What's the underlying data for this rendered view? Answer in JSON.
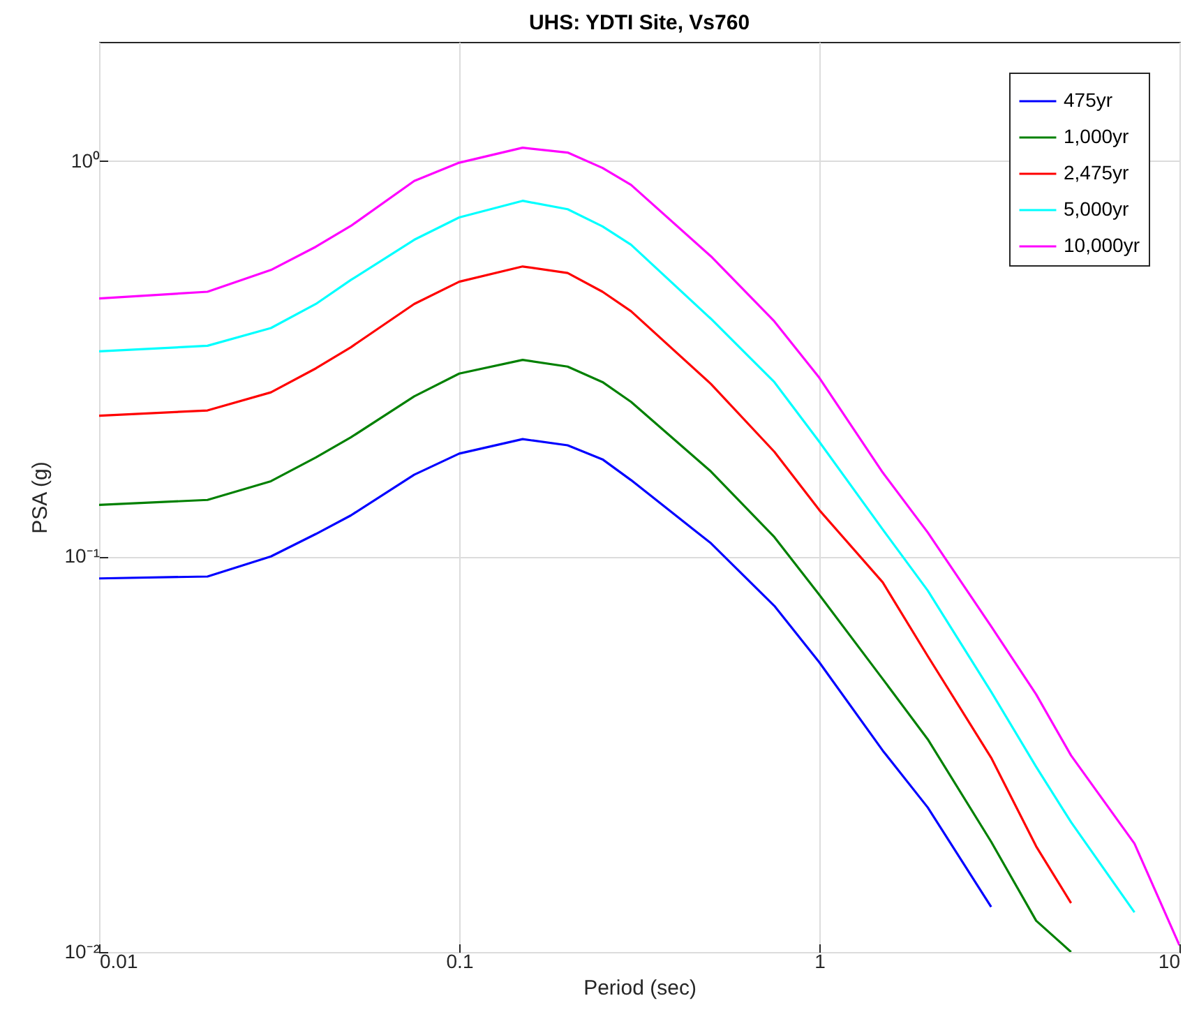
{
  "chart_data": {
    "type": "line",
    "title": "UHS: YDTI Site, Vs760",
    "xlabel": "Period (sec)",
    "ylabel": "PSA (g)",
    "x": [
      0.01,
      0.02,
      0.03,
      0.04,
      0.05,
      0.075,
      0.1,
      0.15,
      0.2,
      0.25,
      0.3,
      0.5,
      0.75,
      1,
      1.5,
      2,
      3,
      4,
      5,
      7.5,
      10
    ],
    "series": [
      {
        "name": "475yr",
        "color": "#0000ff",
        "values": [
          0.088,
          0.089,
          0.1,
          0.114,
          0.127,
          0.161,
          0.182,
          0.198,
          0.191,
          0.176,
          0.156,
          0.108,
          0.075,
          0.054,
          0.0323,
          0.0232,
          0.013,
          null,
          null,
          null,
          null
        ]
      },
      {
        "name": "1,000yr",
        "color": "#008000",
        "values": [
          0.135,
          0.139,
          0.155,
          0.178,
          0.2,
          0.254,
          0.29,
          0.314,
          0.302,
          0.276,
          0.246,
          0.164,
          0.112,
          0.08,
          0.049,
          0.0345,
          0.019,
          0.012,
          0.01,
          null,
          null
        ]
      },
      {
        "name": "2,475yr",
        "color": "#ff0000",
        "values": [
          0.227,
          0.234,
          0.26,
          0.299,
          0.338,
          0.435,
          0.495,
          0.541,
          0.521,
          0.467,
          0.417,
          0.273,
          0.184,
          0.131,
          0.086,
          0.056,
          0.031,
          0.0185,
          0.0133,
          null,
          null
        ]
      },
      {
        "name": "5,000yr",
        "color": "#00ffff",
        "values": [
          0.33,
          0.341,
          0.378,
          0.435,
          0.5,
          0.632,
          0.72,
          0.793,
          0.755,
          0.683,
          0.614,
          0.399,
          0.276,
          0.195,
          0.117,
          0.082,
          0.0455,
          0.0294,
          0.0213,
          0.0126,
          null
        ]
      },
      {
        "name": "10,000yr",
        "color": "#ff00ff",
        "values": [
          0.449,
          0.467,
          0.53,
          0.607,
          0.685,
          0.89,
          0.99,
          1.08,
          1.05,
          0.96,
          0.87,
          0.574,
          0.393,
          0.283,
          0.163,
          0.115,
          0.0666,
          0.0448,
          0.0314,
          0.0188,
          0.0104
        ]
      }
    ],
    "log": "xy",
    "xlim": [
      0.01,
      10
    ],
    "ylim": [
      0.01,
      2
    ],
    "xticks": [
      0.01,
      0.1,
      1,
      10
    ],
    "yticks": [
      {
        "value": 0.01,
        "label": "10⁻²"
      },
      {
        "value": 0.1,
        "label": "10⁻¹"
      },
      {
        "value": 1,
        "label": "10⁰"
      }
    ],
    "grid": true,
    "legend": "top right",
    "line_style": "solid"
  }
}
